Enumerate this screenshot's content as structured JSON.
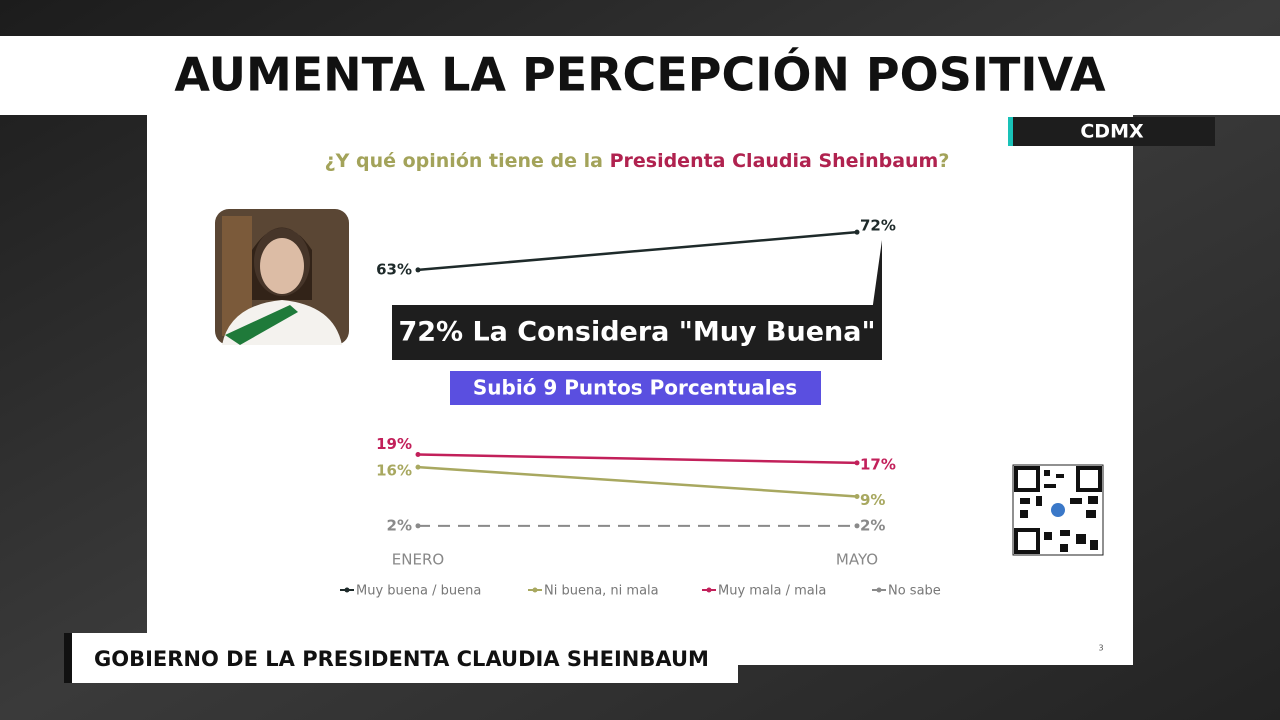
{
  "headline": "AUMENTA LA PERCEPCIÓN POSITIVA",
  "badge": "CDMX",
  "footer": "GOBIERNO DE LA PRESIDENTA CLAUDIA SHEINBAUM",
  "page_number": "3",
  "chart_data": {
    "type": "line",
    "title_parts": [
      "¿Y qué opinión tiene de la ",
      "Presidenta Claudia Sheinbaum",
      "?"
    ],
    "title_colors": [
      "#a3a35a",
      "#b0224f",
      "#a3a35a"
    ],
    "annotations": [
      "72% La Considera \"Muy Buena\"",
      "Subió 9 Puntos Porcentuales"
    ],
    "categories": [
      "ENERO",
      "MAYO"
    ],
    "ylim": [
      -4,
      78
    ],
    "series": [
      {
        "name": "Muy buena / buena",
        "color": "#1e2a2a",
        "values": [
          63,
          72
        ],
        "value_labels": [
          "63%",
          "72%"
        ]
      },
      {
        "name": "Ni buena, ni mala",
        "color": "#a8a860",
        "values": [
          16,
          9
        ],
        "value_labels": [
          "16%",
          "9%"
        ]
      },
      {
        "name": "Muy mala / mala",
        "color": "#c2205a",
        "values": [
          19,
          17
        ],
        "value_labels": [
          "19%",
          "17%"
        ]
      },
      {
        "name": "No sabe",
        "color": "#8a8a8a",
        "dashed": true,
        "values": [
          2,
          2
        ],
        "value_labels": [
          "2%",
          "2%"
        ]
      }
    ]
  }
}
